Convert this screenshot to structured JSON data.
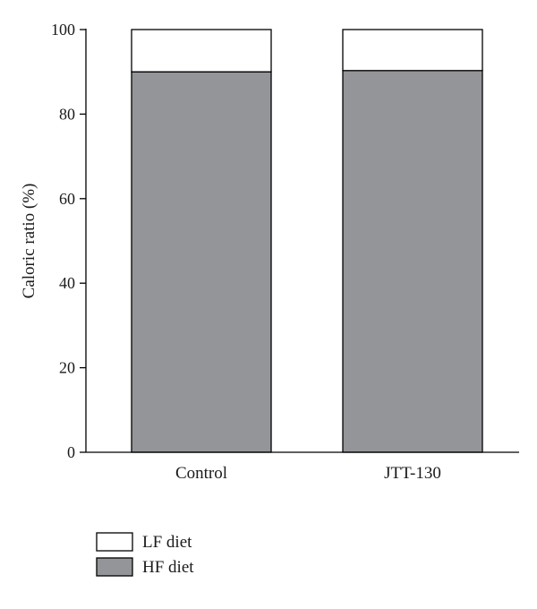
{
  "chart_data": {
    "type": "bar",
    "stacked": true,
    "categories": [
      "Control",
      "JTT-130"
    ],
    "series": [
      {
        "name": "HF diet",
        "values": [
          90,
          90.3
        ],
        "color": "#939598"
      },
      {
        "name": "LF diet",
        "values": [
          10,
          9.7
        ],
        "color": "#ffffff"
      }
    ],
    "title": "",
    "xlabel": "",
    "ylabel": "Caloric ratio (%)",
    "ylim": [
      0,
      100
    ],
    "yticks": [
      0,
      20,
      40,
      60,
      80,
      100
    ],
    "grid": false,
    "legend_position": "bottom-left"
  }
}
